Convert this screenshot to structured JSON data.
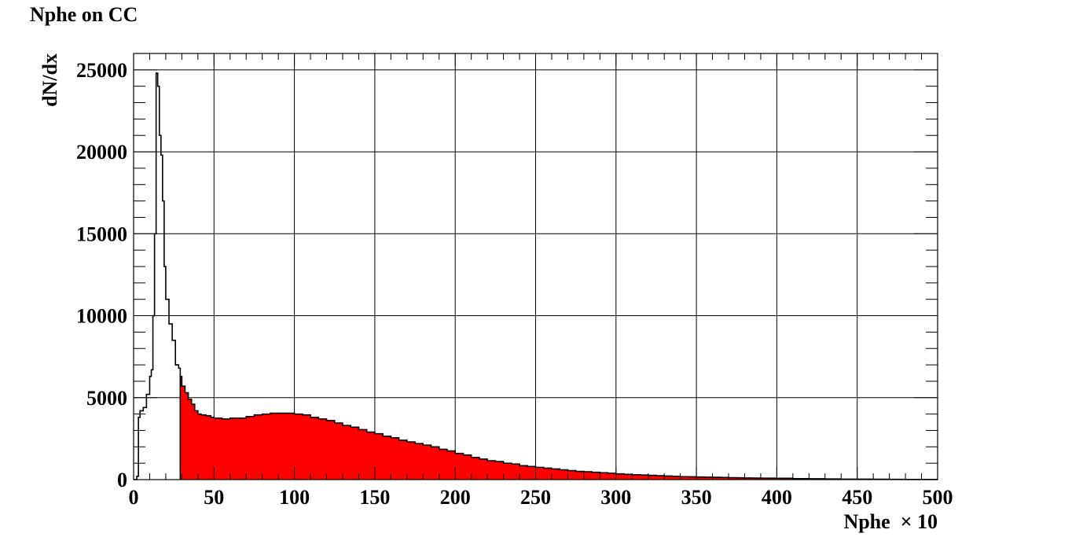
{
  "chart_data": {
    "type": "histogram",
    "title": "Nphe on CC",
    "xlabel": "Nphe  × 10",
    "ylabel": "dN/dx",
    "xlim": [
      0,
      500
    ],
    "ylim": [
      0,
      26000
    ],
    "x_ticks": [
      0,
      50,
      100,
      150,
      200,
      250,
      300,
      350,
      400,
      450,
      500
    ],
    "x_tick_labels": [
      "0",
      "50",
      "100",
      "150",
      "200",
      "250",
      "300",
      "350",
      "400",
      "450",
      "500"
    ],
    "y_ticks": [
      0,
      5000,
      10000,
      15000,
      20000,
      25000
    ],
    "y_tick_labels": [
      "0",
      "5000",
      "10000",
      "15000",
      "20000",
      "25000"
    ],
    "grid": true,
    "fill_color": "#ff0000",
    "line_color": "#000000",
    "fill_from_x": 29,
    "series": [
      {
        "points": [
          [
            0,
            0
          ],
          [
            2,
            200
          ],
          [
            3,
            3800
          ],
          [
            4,
            4200
          ],
          [
            6,
            4400
          ],
          [
            8,
            5200
          ],
          [
            10,
            6300
          ],
          [
            11,
            6700
          ],
          [
            12,
            10000
          ],
          [
            13,
            15000
          ],
          [
            14,
            24800
          ],
          [
            15,
            24000
          ],
          [
            16,
            21000
          ],
          [
            17,
            19800
          ],
          [
            18,
            17000
          ],
          [
            19,
            13000
          ],
          [
            20,
            11000
          ],
          [
            22,
            9500
          ],
          [
            24,
            8500
          ],
          [
            26,
            7000
          ],
          [
            28,
            6800
          ],
          [
            29,
            6300
          ],
          [
            30,
            5700
          ],
          [
            32,
            5300
          ],
          [
            34,
            4900
          ],
          [
            36,
            4600
          ],
          [
            38,
            4200
          ],
          [
            40,
            4000
          ],
          [
            42,
            3950
          ],
          [
            45,
            3900
          ],
          [
            48,
            3800
          ],
          [
            50,
            3750
          ],
          [
            55,
            3700
          ],
          [
            60,
            3750
          ],
          [
            65,
            3750
          ],
          [
            70,
            3850
          ],
          [
            75,
            3950
          ],
          [
            80,
            4000
          ],
          [
            85,
            4050
          ],
          [
            90,
            4050
          ],
          [
            95,
            4050
          ],
          [
            100,
            4000
          ],
          [
            105,
            3950
          ],
          [
            110,
            3800
          ],
          [
            115,
            3700
          ],
          [
            120,
            3600
          ],
          [
            125,
            3450
          ],
          [
            130,
            3300
          ],
          [
            135,
            3200
          ],
          [
            140,
            3050
          ],
          [
            145,
            2900
          ],
          [
            150,
            2800
          ],
          [
            155,
            2650
          ],
          [
            160,
            2550
          ],
          [
            165,
            2400
          ],
          [
            170,
            2300
          ],
          [
            175,
            2200
          ],
          [
            180,
            2100
          ],
          [
            185,
            2000
          ],
          [
            190,
            1850
          ],
          [
            195,
            1750
          ],
          [
            200,
            1600
          ],
          [
            205,
            1500
          ],
          [
            210,
            1350
          ],
          [
            215,
            1250
          ],
          [
            220,
            1150
          ],
          [
            225,
            1100
          ],
          [
            230,
            1000
          ],
          [
            235,
            950
          ],
          [
            240,
            850
          ],
          [
            245,
            800
          ],
          [
            250,
            750
          ],
          [
            255,
            700
          ],
          [
            260,
            650
          ],
          [
            265,
            600
          ],
          [
            270,
            550
          ],
          [
            275,
            500
          ],
          [
            280,
            480
          ],
          [
            285,
            450
          ],
          [
            290,
            420
          ],
          [
            295,
            390
          ],
          [
            300,
            350
          ],
          [
            305,
            320
          ],
          [
            310,
            300
          ],
          [
            315,
            280
          ],
          [
            320,
            260
          ],
          [
            325,
            240
          ],
          [
            330,
            220
          ],
          [
            335,
            200
          ],
          [
            340,
            180
          ],
          [
            345,
            170
          ],
          [
            350,
            160
          ],
          [
            355,
            150
          ],
          [
            360,
            140
          ],
          [
            365,
            130
          ],
          [
            370,
            120
          ],
          [
            375,
            110
          ],
          [
            380,
            100
          ],
          [
            385,
            95
          ],
          [
            390,
            90
          ],
          [
            395,
            85
          ],
          [
            400,
            80
          ],
          [
            410,
            60
          ],
          [
            420,
            50
          ],
          [
            430,
            40
          ],
          [
            440,
            30
          ],
          [
            450,
            25
          ],
          [
            460,
            20
          ],
          [
            470,
            15
          ],
          [
            480,
            10
          ],
          [
            490,
            8
          ],
          [
            500,
            5
          ]
        ]
      }
    ]
  }
}
